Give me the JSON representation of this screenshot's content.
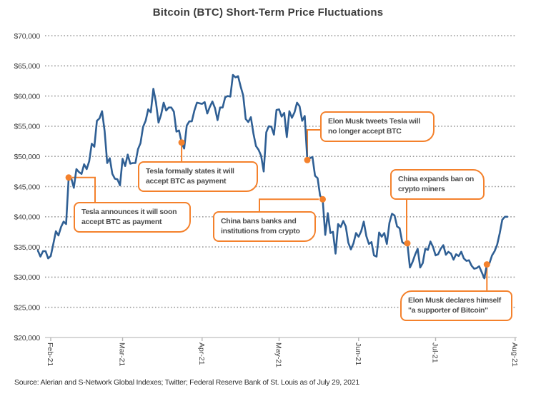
{
  "colors": {
    "line": "#2F5F94",
    "accent": "#F4812C",
    "grid": "#9A9A9A",
    "axis": "#CACACA",
    "tick": "#B5B5B5",
    "text": "#3F3F3F",
    "callout_text": "#4D4D4D",
    "title": "#3C3C3C"
  },
  "chart_data": {
    "type": "line",
    "title": "Bitcoin (BTC) Short-Term Price Fluctuations",
    "source_note": "Source: Alerian and S-Network Global Indexes; Twitter; Federal Reserve Bank of St. Louis as of July 29, 2021",
    "ylim": [
      20000,
      70000
    ],
    "grid": "dotted-horizontal",
    "legend": "none",
    "y_ticks": [
      {
        "value": 70000,
        "label": "$70,000"
      },
      {
        "value": 65000,
        "label": "$65,000"
      },
      {
        "value": 60000,
        "label": "$60,000"
      },
      {
        "value": 55000,
        "label": "$55,000"
      },
      {
        "value": 50000,
        "label": "$50,000"
      },
      {
        "value": 45000,
        "label": "$45,000"
      },
      {
        "value": 40000,
        "label": "$40,000"
      },
      {
        "value": 35000,
        "label": "$35,000"
      },
      {
        "value": 30000,
        "label": "$30,000"
      },
      {
        "value": 25000,
        "label": "$25,000"
      },
      {
        "value": 20000,
        "label": "$20,000"
      }
    ],
    "x_ticks": [
      {
        "label": "Feb-21",
        "day_offset": 0
      },
      {
        "label": "Mar-21",
        "day_offset": 28
      },
      {
        "label": "Apr-21",
        "day_offset": 59
      },
      {
        "label": "May-21",
        "day_offset": 89
      },
      {
        "label": "Jun-21",
        "day_offset": 120
      },
      {
        "label": "Jul-21",
        "day_offset": 150
      },
      {
        "label": "Aug-21",
        "day_offset": 181
      }
    ],
    "series": [
      {
        "name": "BTC price (USD)",
        "frequency": "daily",
        "start_day_offset": -5,
        "values": [
          34400,
          33400,
          34300,
          34300,
          33100,
          33500,
          35500,
          37600,
          36900,
          38300,
          39200,
          38800,
          46500,
          46400,
          44800,
          47900,
          47400,
          47100,
          48700,
          47900,
          49200,
          52100,
          51600,
          55900,
          56300,
          57500,
          54200,
          48900,
          49700,
          47100,
          46300,
          46200,
          45200,
          49600,
          48400,
          50300,
          48800,
          48900,
          48900,
          51200,
          52200,
          54900,
          55900,
          57800,
          57300,
          61200,
          59000,
          55600,
          56900,
          58900,
          57600,
          58100,
          58100,
          57400,
          54100,
          54300,
          52300,
          51300,
          55100,
          55800,
          55800,
          57600,
          58900,
          58800,
          58700,
          59000,
          57100,
          58200,
          59100,
          58000,
          56000,
          58100,
          58100,
          59800,
          60000,
          59900,
          63500,
          63100,
          63300,
          61600,
          60100,
          56200,
          55700,
          56500,
          53800,
          51700,
          51100,
          50100,
          47500,
          54000,
          55000,
          54900,
          53600,
          57700,
          57800,
          56600,
          57200,
          53200,
          57500,
          56400,
          57300,
          58900,
          58300,
          55900,
          56700,
          49400,
          49700,
          49900,
          46800,
          46400,
          43500,
          42900,
          37000,
          40600,
          37300,
          37500,
          33900,
          38800,
          38300,
          39300,
          38400,
          35700,
          34600,
          35600,
          37300,
          36700,
          37600,
          39200,
          36800,
          35500,
          35800,
          33600,
          33400,
          37400,
          36700,
          37300,
          35500,
          39000,
          40500,
          40200,
          38400,
          38100,
          35800,
          35500,
          35600,
          31600,
          32500,
          33700,
          34700,
          31600,
          32300,
          34700,
          34500,
          35900,
          35000,
          33600,
          33800,
          34700,
          35300,
          33700,
          34200,
          33900,
          32900,
          33800,
          33500,
          34200,
          33100,
          32700,
          32800,
          31900,
          31400,
          31500,
          31800,
          30800,
          29800,
          32100,
          32300,
          33600,
          34300,
          35400,
          37300,
          39500,
          40000,
          40000
        ]
      }
    ],
    "annotations": [
      {
        "text": "Tesla announces it will soon\naccept BTC as payment",
        "day_offset": 7,
        "price": 46500
      },
      {
        "text": "Tesla formally states it will\naccept BTC as payment",
        "day_offset": 51,
        "price": 52300
      },
      {
        "text": "Elon Musk tweets Tesla will\nno longer accept BTC",
        "day_offset": 100,
        "price": 49400
      },
      {
        "text": "China bans banks and\ninstitutions from crypto",
        "day_offset": 106,
        "price": 42900
      },
      {
        "text": "China expands ban on\ncrypto miners",
        "day_offset": 139,
        "price": 35600
      },
      {
        "text": "Elon Musk declares himself\n\"a supporter of Bitcoin\"",
        "day_offset": 170,
        "price": 32100
      }
    ]
  }
}
